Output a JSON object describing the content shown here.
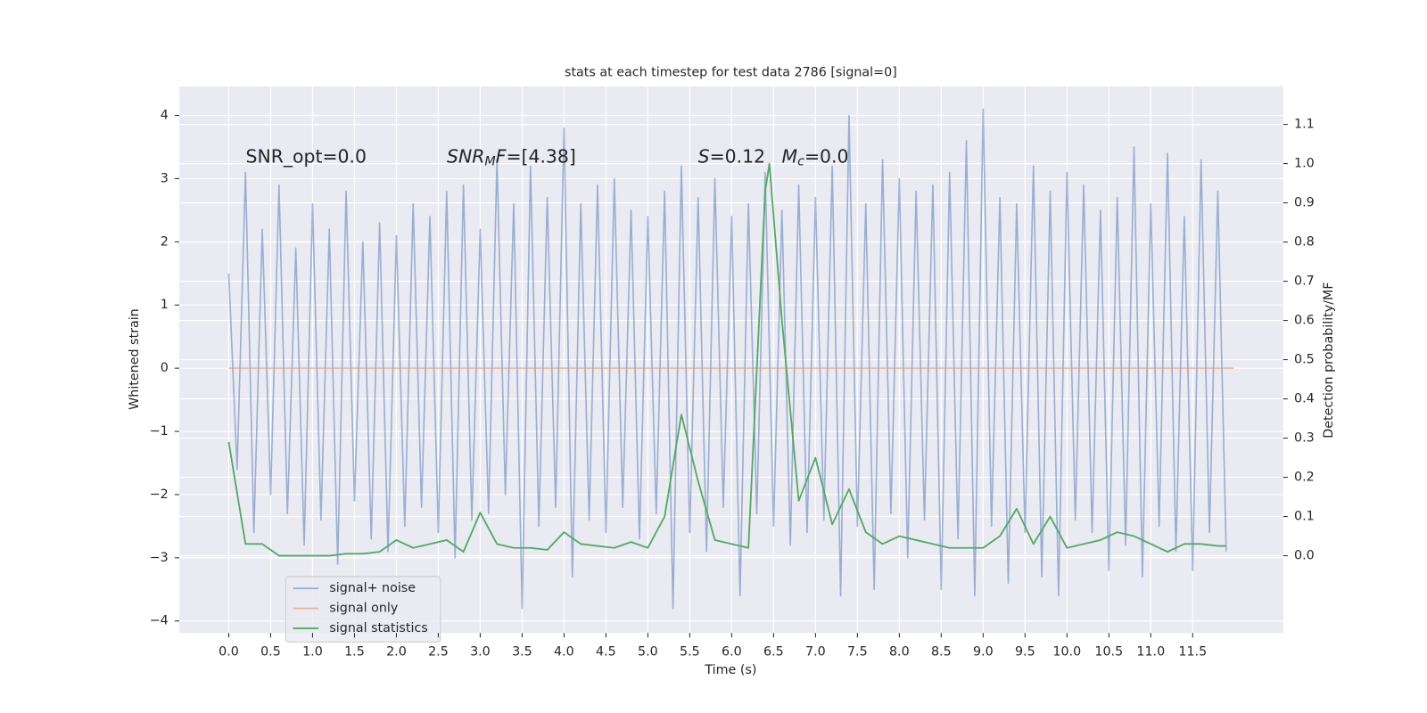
{
  "chart_data": {
    "type": "line",
    "title": "stats at each timestep for test data 2786 [signal=0]",
    "xlabel": "Time (s)",
    "ylabel": "Whitened strain",
    "y2label": "Detection probability/MF",
    "annotations": [
      [
        "SNR_opt=0.0"
      ],
      [
        "SNR",
        "M",
        "F",
        "=[4.38]"
      ],
      [
        "S",
        "=0.12"
      ],
      [
        "M",
        "c",
        "=0.0"
      ]
    ],
    "grid": true,
    "legend_loc": "lower left",
    "xlim": [
      -0.59,
      12.58
    ],
    "ylim": [
      -4.19,
      4.46
    ],
    "y2lim": [
      -0.197,
      1.197
    ],
    "xticks": [
      {
        "value": 0,
        "label": "0.0"
      },
      {
        "value": 0.5,
        "label": "0.5"
      },
      {
        "value": 1,
        "label": "1.0"
      },
      {
        "value": 1.5,
        "label": "1.5"
      },
      {
        "value": 2,
        "label": "2.0"
      },
      {
        "value": 2.5,
        "label": "2.5"
      },
      {
        "value": 3,
        "label": "3.0"
      },
      {
        "value": 3.5,
        "label": "3.5"
      },
      {
        "value": 4,
        "label": "4.0"
      },
      {
        "value": 4.5,
        "label": "4.5"
      },
      {
        "value": 5,
        "label": "5.0"
      },
      {
        "value": 5.5,
        "label": "5.5"
      },
      {
        "value": 6,
        "label": "6.0"
      },
      {
        "value": 6.5,
        "label": "6.5"
      },
      {
        "value": 7,
        "label": "7.0"
      },
      {
        "value": 7.5,
        "label": "7.5"
      },
      {
        "value": 8,
        "label": "8.0"
      },
      {
        "value": 8.5,
        "label": "8.5"
      },
      {
        "value": 9,
        "label": "9.0"
      },
      {
        "value": 9.5,
        "label": "9.5"
      },
      {
        "value": 10,
        "label": "10.0"
      },
      {
        "value": 10.5,
        "label": "10.5"
      },
      {
        "value": 11,
        "label": "11.0"
      },
      {
        "value": 11.5,
        "label": "11.5"
      }
    ],
    "yticks": [
      {
        "value": -4,
        "label": "−4"
      },
      {
        "value": -3,
        "label": "−3"
      },
      {
        "value": -2,
        "label": "−2"
      },
      {
        "value": -1,
        "label": "−1"
      },
      0,
      1,
      2,
      3,
      4
    ],
    "y2ticks": [
      {
        "value": 0,
        "label": "0.0"
      },
      {
        "value": 0.1,
        "label": "0.1"
      },
      {
        "value": 0.2,
        "label": "0.2"
      },
      {
        "value": 0.3,
        "label": "0.3"
      },
      {
        "value": 0.4,
        "label": "0.4"
      },
      {
        "value": 0.5,
        "label": "0.5"
      },
      {
        "value": 0.6,
        "label": "0.6"
      },
      {
        "value": 0.7,
        "label": "0.7"
      },
      {
        "value": 0.8,
        "label": "0.8"
      },
      {
        "value": 0.9,
        "label": "0.9"
      },
      {
        "value": 1,
        "label": "1.0"
      },
      {
        "value": 1.1,
        "label": "1.1"
      }
    ],
    "series": [
      {
        "name": "signal+ noise",
        "color": "#4c72b0",
        "opacity": 0.5,
        "x": [
          0,
          0.1,
          0.2,
          0.3,
          0.4,
          0.5,
          0.6,
          0.7,
          0.8,
          0.9,
          1,
          1.1,
          1.2,
          1.3,
          1.4,
          1.5,
          1.6,
          1.7,
          1.8,
          1.9,
          2,
          2.1,
          2.2,
          2.3,
          2.4,
          2.5,
          2.6,
          2.7,
          2.8,
          2.9,
          3,
          3.1,
          3.2,
          3.3,
          3.4,
          3.5,
          3.6,
          3.7,
          3.8,
          3.9,
          4,
          4.1,
          4.2,
          4.3,
          4.4,
          4.5,
          4.6,
          4.7,
          4.8,
          4.9,
          5,
          5.1,
          5.2,
          5.3,
          5.4,
          5.5,
          5.6,
          5.7,
          5.8,
          5.9,
          6,
          6.1,
          6.2,
          6.3,
          6.4,
          6.5,
          6.6,
          6.7,
          6.8,
          6.9,
          7,
          7.1,
          7.2,
          7.3,
          7.4,
          7.5,
          7.6,
          7.7,
          7.8,
          7.9,
          8,
          8.1,
          8.2,
          8.3,
          8.4,
          8.5,
          8.6,
          8.7,
          8.8,
          8.9,
          9,
          9.1,
          9.2,
          9.3,
          9.4,
          9.5,
          9.6,
          9.7,
          9.8,
          9.9,
          10,
          10.1,
          10.2,
          10.3,
          10.4,
          10.5,
          10.6,
          10.7,
          10.8,
          10.9,
          11,
          11.1,
          11.2,
          11.3,
          11.4,
          11.5,
          11.6,
          11.7,
          11.8,
          11.9
        ],
        "values": [
          1.5,
          -1.6,
          3.1,
          -2.6,
          2.2,
          -2.0,
          2.9,
          -2.3,
          1.9,
          -2.8,
          2.6,
          -2.4,
          2.2,
          -3.1,
          2.8,
          -2.1,
          2.0,
          -2.7,
          2.3,
          -2.9,
          2.1,
          -2.5,
          2.6,
          -2.2,
          2.4,
          -2.6,
          2.8,
          -3.0,
          2.9,
          -2.4,
          2.2,
          -2.3,
          3.3,
          -2.0,
          2.6,
          -3.8,
          3.2,
          -2.5,
          2.7,
          -2.2,
          3.8,
          -3.3,
          2.6,
          -2.4,
          2.9,
          -2.6,
          3.0,
          -2.2,
          2.5,
          -2.7,
          2.4,
          -2.3,
          2.8,
          -3.8,
          3.2,
          -2.6,
          2.7,
          -2.9,
          3.0,
          -2.2,
          2.4,
          -3.6,
          2.6,
          -2.3,
          3.1,
          -2.5,
          2.5,
          -2.8,
          2.9,
          -2.6,
          2.7,
          -2.4,
          3.2,
          -3.6,
          4.0,
          -2.5,
          2.6,
          -3.5,
          3.3,
          -2.3,
          3.0,
          -3.0,
          2.8,
          -2.4,
          2.9,
          -3.5,
          3.1,
          -2.7,
          3.6,
          -3.6,
          4.1,
          -2.5,
          2.7,
          -3.4,
          2.6,
          -2.6,
          3.2,
          -3.3,
          2.8,
          -3.6,
          3.1,
          -2.4,
          2.9,
          -2.6,
          2.5,
          -3.2,
          2.7,
          -2.8,
          3.5,
          -3.3,
          2.6,
          -2.5,
          3.4,
          -2.9,
          2.4,
          -3.2,
          3.3,
          -2.6,
          2.8,
          -2.9
        ]
      },
      {
        "name": "signal only",
        "color": "#dd8452",
        "opacity": 0.5,
        "x": [
          0,
          11.99
        ],
        "values": [
          0,
          0
        ]
      },
      {
        "name": "signal statistics",
        "color": "#55a868",
        "opacity": 1,
        "axis": "y2",
        "x": [
          0,
          0.2,
          0.4,
          0.6,
          0.8,
          1,
          1.2,
          1.4,
          1.6,
          1.8,
          2,
          2.2,
          2.4,
          2.6,
          2.8,
          3,
          3.2,
          3.4,
          3.6,
          3.8,
          4,
          4.2,
          4.4,
          4.6,
          4.8,
          5,
          5.2,
          5.4,
          5.6,
          5.8,
          6,
          6.2,
          6.4,
          6.45,
          6.6,
          6.8,
          7,
          7.2,
          7.4,
          7.6,
          7.8,
          8,
          8.2,
          8.4,
          8.6,
          8.8,
          9,
          9.2,
          9.4,
          9.6,
          9.8,
          10,
          10.2,
          10.4,
          10.6,
          10.8,
          11,
          11.2,
          11.4,
          11.6,
          11.8,
          11.9
        ],
        "values": [
          0.29,
          0.03,
          0.03,
          0,
          0,
          0,
          0,
          0.005,
          0.005,
          0.01,
          0.04,
          0.02,
          0.03,
          0.04,
          0.01,
          0.11,
          0.03,
          0.02,
          0.02,
          0.015,
          0.06,
          0.03,
          0.025,
          0.02,
          0.035,
          0.02,
          0.1,
          0.36,
          0.19,
          0.04,
          0.03,
          0.02,
          0.93,
          1.0,
          0.6,
          0.14,
          0.25,
          0.08,
          0.17,
          0.06,
          0.03,
          0.05,
          0.04,
          0.03,
          0.02,
          0.02,
          0.02,
          0.05,
          0.12,
          0.03,
          0.1,
          0.02,
          0.03,
          0.04,
          0.06,
          0.05,
          0.03,
          0.01,
          0.03,
          0.03,
          0.025,
          0.025
        ]
      }
    ]
  }
}
